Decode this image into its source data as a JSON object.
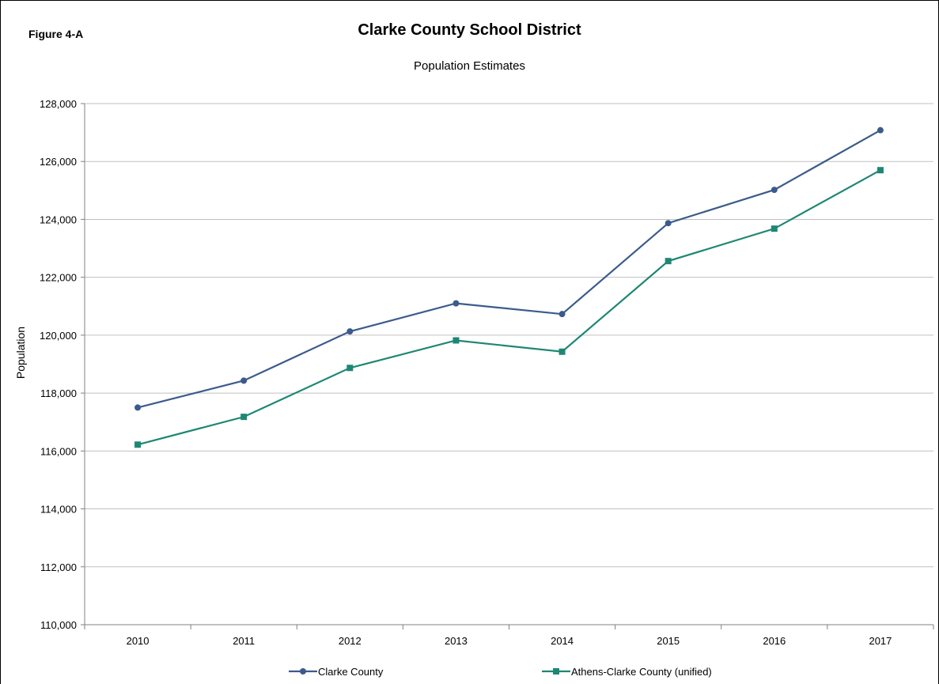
{
  "figure_label": "Figure 4-A",
  "colors": {
    "clarke": "#3b5b8c",
    "athens": "#1e8773",
    "grid": "#c0c0c0",
    "axis": "#808080"
  },
  "chart_data": {
    "type": "line",
    "title": "Clarke County School District",
    "subtitle": "Population Estimates",
    "xlabel": "",
    "ylabel": "Population",
    "categories": [
      "2010",
      "2011",
      "2012",
      "2013",
      "2014",
      "2015",
      "2016",
      "2017"
    ],
    "ylim": [
      110000,
      128000
    ],
    "yticks": [
      110000,
      112000,
      114000,
      116000,
      118000,
      120000,
      122000,
      124000,
      126000,
      128000
    ],
    "ytick_labels": [
      "110,000",
      "112,000",
      "114,000",
      "116,000",
      "118,000",
      "120,000",
      "122,000",
      "124,000",
      "126,000",
      "128,000"
    ],
    "grid": true,
    "legend_position": "bottom",
    "series": [
      {
        "name": "Clarke County",
        "marker": "circle",
        "color_key": "clarke",
        "values": [
          117500,
          118430,
          120130,
          121100,
          120730,
          123870,
          125020,
          127080
        ]
      },
      {
        "name": "Athens-Clarke County (unified)",
        "marker": "square",
        "color_key": "athens",
        "values": [
          116220,
          117180,
          118870,
          119820,
          119430,
          122560,
          123680,
          125700
        ]
      }
    ]
  }
}
